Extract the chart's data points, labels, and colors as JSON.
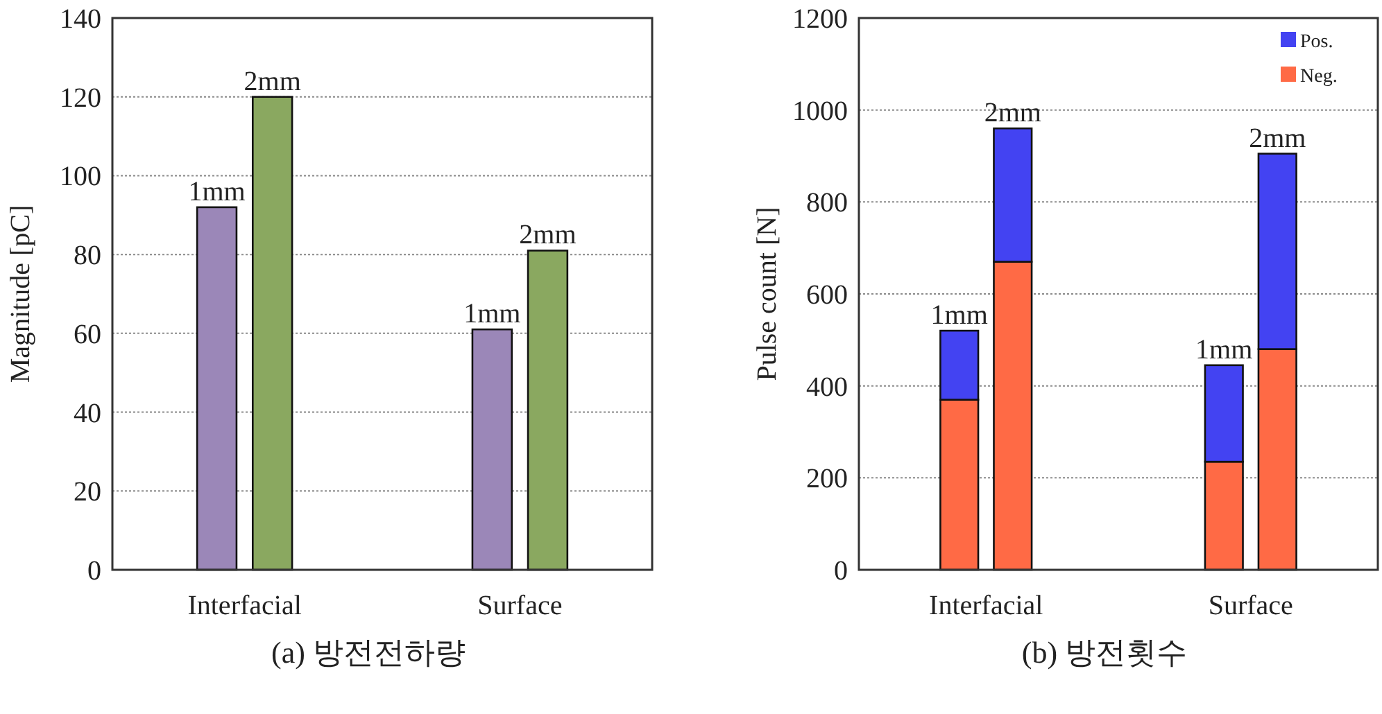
{
  "chart_data": [
    {
      "type": "bar",
      "title": "(a) 방전전하량",
      "ylabel": "Magnitude [pC]",
      "categories": [
        "Interfacial",
        "Surface"
      ],
      "series": [
        {
          "name": "1mm",
          "color": "#9b87b8",
          "values": [
            92,
            61
          ]
        },
        {
          "name": "2mm",
          "color": "#8aa860",
          "values": [
            120,
            81
          ]
        }
      ],
      "ylim": [
        0,
        140
      ],
      "yticks": [
        0,
        20,
        40,
        60,
        80,
        100,
        120,
        140
      ],
      "grid": "y"
    },
    {
      "type": "bar",
      "title": "(b) 방전횟수",
      "ylabel": "Pulse count [N]",
      "categories": [
        "1mm",
        "2mm",
        "1mm",
        "2mm"
      ],
      "stacked": true,
      "annotations": [
        "Interfacial",
        "Surface"
      ],
      "series": [
        {
          "name": "Neg.",
          "color": "#ff6a45",
          "values": [
            370,
            670,
            235,
            480
          ]
        },
        {
          "name": "Pos.",
          "color": "#4343f2",
          "values": [
            150,
            290,
            210,
            425
          ]
        }
      ],
      "ylim": [
        0,
        1200
      ],
      "yticks": [
        0,
        200,
        400,
        600,
        800,
        1000,
        1200
      ],
      "grid": "y",
      "legend": "top right"
    }
  ]
}
